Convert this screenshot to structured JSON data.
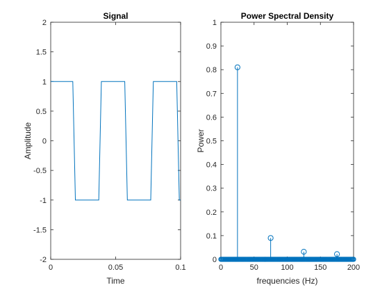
{
  "chart_data": [
    {
      "type": "line",
      "title": "Signal",
      "xlabel": "Time",
      "ylabel": "Amplitude",
      "xlim": [
        0,
        0.1
      ],
      "ylim": [
        -2,
        2
      ],
      "xticks": [
        0,
        0.05,
        0.1
      ],
      "xtick_labels": [
        "0",
        "0.05",
        "0.1"
      ],
      "yticks": [
        -2,
        -1.5,
        -1,
        -0.5,
        0,
        0.5,
        1,
        1.5,
        2
      ],
      "ytick_labels": [
        "-2",
        "-1.5",
        "-1",
        "-0.5",
        "0",
        "0.5",
        "1",
        "1.5",
        "2"
      ],
      "grid": false,
      "color": "#0072BD",
      "series": [
        {
          "x": [
            0,
            0.017,
            0.019,
            0.037,
            0.039,
            0.057,
            0.059,
            0.077,
            0.079,
            0.097,
            0.099,
            0.1
          ],
          "y": [
            1,
            1,
            -1,
            -1,
            1,
            1,
            -1,
            -1,
            1,
            1,
            -1,
            -1
          ]
        }
      ]
    },
    {
      "type": "stem",
      "title": "Power Spectral Density",
      "xlabel": "frequencies (Hz)",
      "ylabel": "Power",
      "xlim": [
        0,
        200
      ],
      "ylim": [
        0,
        1
      ],
      "xticks": [
        0,
        50,
        100,
        150,
        200
      ],
      "xtick_labels": [
        "0",
        "50",
        "100",
        "150",
        "200"
      ],
      "yticks": [
        0,
        0.1,
        0.2,
        0.3,
        0.4,
        0.5,
        0.6,
        0.7,
        0.8,
        0.9,
        1
      ],
      "ytick_labels": [
        "0",
        "0.1",
        "0.2",
        "0.3",
        "0.4",
        "0.5",
        "0.6",
        "0.7",
        "0.8",
        "0.9",
        "1"
      ],
      "grid": false,
      "color": "#0072BD",
      "baseline_from": 0,
      "baseline_to": 200,
      "baseline_step": 1,
      "baseline_value": 0,
      "peaks": [
        {
          "x": 25,
          "y": 0.81
        },
        {
          "x": 75,
          "y": 0.09
        },
        {
          "x": 125,
          "y": 0.032
        },
        {
          "x": 175,
          "y": 0.022
        }
      ]
    }
  ]
}
